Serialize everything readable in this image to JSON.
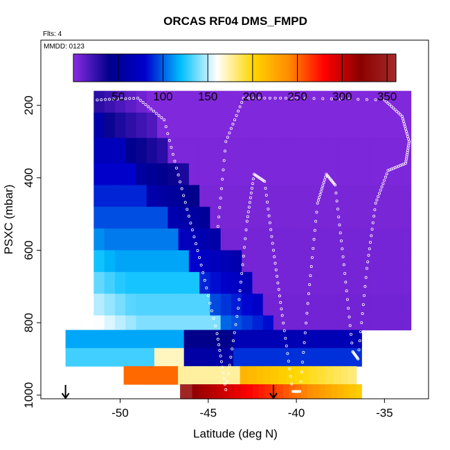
{
  "chart_data": {
    "type": "heatmap",
    "title": "ORCAS RF04 DMS_FMPD",
    "annotations": {
      "flights": "Flts: 4",
      "date": "MMDD: 0123"
    },
    "xlabel": "Latitude (deg N)",
    "ylabel": "PSXC (mbar)",
    "xlim": [
      -54.5,
      -32.5
    ],
    "ylim": [
      1010,
      20
    ],
    "y_reversed": true,
    "x_ticks": [
      -50,
      -45,
      -40,
      -35
    ],
    "x_tick_labels": [
      "-50",
      "-45",
      "-40",
      "-35"
    ],
    "y_ticks": [
      200,
      400,
      600,
      800,
      1000
    ],
    "y_tick_labels": [
      "200",
      "400",
      "600",
      "800",
      "1000"
    ],
    "colorbar": {
      "range": [
        0,
        360
      ],
      "ticks": [
        50,
        100,
        150,
        200,
        250,
        300,
        350
      ],
      "tick_labels": [
        "50",
        "100",
        "150",
        "200",
        "250",
        "300",
        "350"
      ],
      "colors": [
        "#8a2be2",
        "#00008b",
        "#0000cd",
        "#00bfff",
        "#ffffff",
        "#ffd700",
        "#ff8c00",
        "#ff0000",
        "#8b0000",
        "#a52a2a"
      ]
    },
    "cells": [
      {
        "lat0": -51.5,
        "lat1": -33.5,
        "p0": 160,
        "p1": 220,
        "v": 3
      },
      {
        "lat0": -51.5,
        "lat1": -33.5,
        "p0": 220,
        "p1": 290,
        "v": 3
      },
      {
        "lat0": -51.5,
        "lat1": -33.5,
        "p0": 290,
        "p1": 360,
        "v": 4
      },
      {
        "lat0": -51.5,
        "lat1": -33.5,
        "p0": 360,
        "p1": 420,
        "v": 4
      },
      {
        "lat0": -51.5,
        "lat1": -33.5,
        "p0": 420,
        "p1": 480,
        "v": 5
      },
      {
        "lat0": -51.5,
        "lat1": -33.5,
        "p0": 480,
        "p1": 540,
        "v": 5
      },
      {
        "lat0": -51.5,
        "lat1": -33.5,
        "p0": 540,
        "p1": 600,
        "v": 6
      },
      {
        "lat0": -51.5,
        "lat1": -33.5,
        "p0": 600,
        "p1": 660,
        "v": 6
      },
      {
        "lat0": -51.5,
        "lat1": -33.5,
        "p0": 660,
        "p1": 720,
        "v": 6
      },
      {
        "lat0": -51.5,
        "lat1": -33.5,
        "p0": 720,
        "p1": 780,
        "v": 7
      },
      {
        "lat0": -51.5,
        "lat1": -33.5,
        "p0": 780,
        "p1": 820,
        "v": 7
      },
      {
        "lat0": -53.1,
        "lat1": -36.3,
        "p0": 820,
        "p1": 870,
        "v": 60
      },
      {
        "lat0": -53.1,
        "lat1": -36.3,
        "p0": 870,
        "p1": 920,
        "v": 120
      },
      {
        "lat0": -49.8,
        "lat1": -36.6,
        "p0": 920,
        "p1": 970,
        "v": 230
      },
      {
        "lat0": -46.6,
        "lat1": -36.3,
        "p0": 970,
        "p1": 1010,
        "v": 260
      }
    ],
    "flight_track_points": 300,
    "flight_track_pressure_range": [
      180,
      990
    ],
    "markers": [
      {
        "lat": -53.1,
        "p": 1000,
        "label": "arrow"
      },
      {
        "lat": -41.3,
        "p": 1000,
        "label": "arrow"
      }
    ]
  }
}
